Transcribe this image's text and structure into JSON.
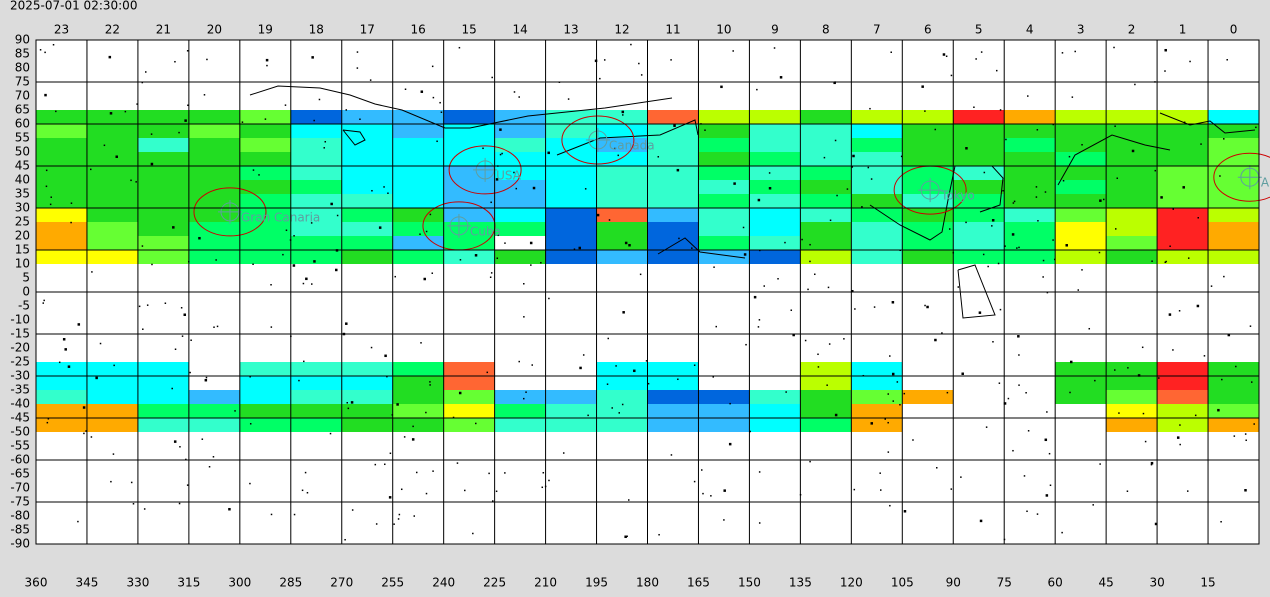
{
  "chart_data": {
    "type": "heatmap",
    "timestamp": "2025-07-01 02:30:00",
    "xlim": [
      360,
      0
    ],
    "ylim": [
      90,
      -90
    ],
    "xticks": [
      360,
      345,
      330,
      315,
      300,
      285,
      270,
      255,
      240,
      225,
      210,
      195,
      180,
      165,
      150,
      135,
      120,
      105,
      90,
      75,
      60,
      45,
      30,
      15
    ],
    "yticks": [
      90,
      85,
      80,
      75,
      70,
      65,
      60,
      55,
      50,
      45,
      40,
      35,
      30,
      25,
      20,
      15,
      10,
      5,
      0,
      -5,
      -10,
      -15,
      -20,
      -25,
      -30,
      -35,
      -40,
      -45,
      -50,
      -55,
      -60,
      -65,
      -70,
      -75,
      -80,
      -85,
      -90
    ],
    "ra_hours": [
      23,
      22,
      21,
      20,
      19,
      18,
      17,
      16,
      15,
      14,
      13,
      12,
      11,
      10,
      9,
      8,
      7,
      6,
      5,
      4,
      3,
      2,
      1,
      0
    ],
    "colors": [
      "#0066dd",
      "#33bbff",
      "#00ffff",
      "#33ffcc",
      "#00ff66",
      "#22dd22",
      "#66ff33",
      "#bbff00",
      "#ffff00",
      "#ffaa00",
      "#ff6633",
      "#ff2222"
    ],
    "rows": [
      {
        "dec_top": 65,
        "dec_bottom": 60,
        "values": [
          5,
          5,
          5,
          5,
          6,
          0,
          1,
          1,
          0,
          1,
          3,
          3,
          10,
          7,
          7,
          5,
          7,
          7,
          11,
          9,
          7,
          7,
          7,
          2
        ]
      },
      {
        "dec_top": 60,
        "dec_bottom": 55,
        "values": [
          6,
          5,
          5,
          6,
          5,
          2,
          2,
          1,
          2,
          1,
          3,
          2,
          3,
          5,
          3,
          3,
          2,
          5,
          5,
          5,
          5,
          5,
          5,
          5
        ]
      },
      {
        "dec_top": 55,
        "dec_bottom": 50,
        "values": [
          5,
          5,
          3,
          5,
          6,
          3,
          2,
          2,
          2,
          3,
          2,
          1,
          3,
          4,
          3,
          3,
          4,
          5,
          5,
          4,
          5,
          5,
          5,
          6
        ]
      },
      {
        "dec_top": 50,
        "dec_bottom": 45,
        "values": [
          5,
          5,
          5,
          5,
          5,
          3,
          2,
          2,
          2,
          2,
          2,
          2,
          3,
          5,
          4,
          3,
          3,
          5,
          5,
          5,
          4,
          5,
          5,
          6
        ]
      },
      {
        "dec_top": 45,
        "dec_bottom": 40,
        "values": [
          5,
          5,
          5,
          5,
          4,
          3,
          2,
          2,
          1,
          2,
          2,
          3,
          3,
          4,
          3,
          4,
          3,
          4,
          3,
          5,
          5,
          5,
          6,
          6
        ]
      },
      {
        "dec_top": 40,
        "dec_bottom": 35,
        "values": [
          5,
          5,
          5,
          5,
          5,
          4,
          2,
          2,
          1,
          1,
          2,
          3,
          3,
          3,
          4,
          5,
          3,
          4,
          5,
          5,
          4,
          5,
          6,
          6
        ]
      },
      {
        "dec_top": 35,
        "dec_bottom": 30,
        "values": [
          5,
          5,
          5,
          5,
          4,
          3,
          3,
          2,
          1,
          1,
          2,
          3,
          3,
          4,
          3,
          4,
          5,
          3,
          4,
          5,
          5,
          5,
          6,
          6
        ]
      },
      {
        "dec_top": 30,
        "dec_bottom": 25,
        "values": [
          8,
          5,
          5,
          5,
          4,
          3,
          4,
          5,
          1,
          2,
          0,
          10,
          1,
          3,
          2,
          3,
          4,
          5,
          4,
          3,
          6,
          7,
          11,
          7
        ]
      },
      {
        "dec_top": 25,
        "dec_bottom": 20,
        "values": [
          9,
          6,
          5,
          4,
          4,
          3,
          3,
          4,
          4,
          4,
          0,
          5,
          0,
          3,
          2,
          5,
          3,
          4,
          3,
          4,
          8,
          7,
          11,
          9
        ]
      },
      {
        "dec_top": 20,
        "dec_bottom": 15,
        "values": [
          9,
          6,
          6,
          4,
          4,
          4,
          4,
          1,
          4,
          null,
          0,
          5,
          0,
          4,
          3,
          5,
          3,
          4,
          3,
          4,
          8,
          6,
          11,
          9
        ]
      },
      {
        "dec_top": 15,
        "dec_bottom": 10,
        "values": [
          8,
          8,
          6,
          4,
          4,
          4,
          5,
          4,
          3,
          5,
          0,
          1,
          0,
          1,
          0,
          7,
          3,
          5,
          4,
          4,
          7,
          5,
          7,
          7
        ]
      },
      {
        "dec_top": -25,
        "dec_bottom": -30,
        "values": [
          2,
          2,
          2,
          null,
          3,
          3,
          3,
          4,
          10,
          null,
          null,
          2,
          2,
          null,
          null,
          7,
          2,
          null,
          null,
          null,
          5,
          5,
          11,
          5
        ]
      },
      {
        "dec_top": -30,
        "dec_bottom": -35,
        "values": [
          2,
          2,
          2,
          null,
          2,
          2,
          2,
          5,
          10,
          null,
          null,
          2,
          2,
          null,
          null,
          7,
          2,
          null,
          null,
          null,
          5,
          5,
          11,
          5
        ]
      },
      {
        "dec_top": -35,
        "dec_bottom": -40,
        "values": [
          3,
          2,
          2,
          1,
          2,
          3,
          3,
          5,
          6,
          1,
          1,
          3,
          0,
          0,
          3,
          5,
          6,
          9,
          null,
          null,
          5,
          6,
          10,
          5
        ]
      },
      {
        "dec_top": -40,
        "dec_bottom": -45,
        "values": [
          9,
          9,
          4,
          4,
          5,
          5,
          5,
          6,
          8,
          4,
          3,
          3,
          1,
          1,
          2,
          5,
          9,
          null,
          null,
          null,
          null,
          8,
          7,
          6
        ]
      },
      {
        "dec_top": -45,
        "dec_bottom": -50,
        "values": [
          9,
          9,
          3,
          3,
          4,
          4,
          5,
          5,
          6,
          3,
          3,
          3,
          1,
          1,
          2,
          4,
          9,
          null,
          null,
          null,
          null,
          9,
          7,
          9
        ]
      }
    ],
    "places": [
      {
        "name": "Canada",
        "ra": 194.6,
        "dec": 54.3
      },
      {
        "name": "USA",
        "ra": 227.8,
        "dec": 43.6
      },
      {
        "name": "Cuba",
        "ra": 235.5,
        "dec": 23.6
      },
      {
        "name": "Gran Canaria",
        "ra": 302.9,
        "dec": 28.6
      },
      {
        "name": "Tokyo",
        "ra": 96.8,
        "dec": 36.4
      },
      {
        "name": "A",
        "ra": 2.7,
        "dec": 41
      }
    ]
  }
}
